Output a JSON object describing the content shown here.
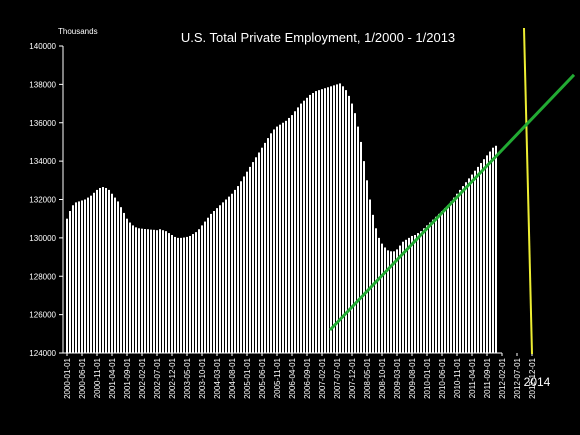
{
  "chart_data": {
    "type": "bar",
    "title": "U.S. Total Private Employment, 1/2000 - 1/2013",
    "unit_label": "Thousands",
    "ylim": [
      124000,
      140000
    ],
    "yticks": [
      124000,
      126000,
      128000,
      130000,
      132000,
      134000,
      136000,
      138000,
      140000
    ],
    "xtick_labels": [
      "2000-01-01",
      "2000-06-01",
      "2000-11-01",
      "2001-04-01",
      "2001-09-01",
      "2002-02-01",
      "2002-07-01",
      "2002-12-01",
      "2003-05-01",
      "2003-10-01",
      "2004-03-01",
      "2004-08-01",
      "2005-01-01",
      "2005-06-01",
      "2005-11-01",
      "2006-04-01",
      "2006-09-01",
      "2007-02-01",
      "2007-07-01",
      "2007-12-01",
      "2008-05-01",
      "2008-10-01",
      "2009-03-01",
      "2009-08-01",
      "2010-01-01",
      "2010-06-01",
      "2010-11-01",
      "2011-04-01",
      "2011-09-01",
      "2012-02-01",
      "2012-07-01",
      "2012-12-01"
    ],
    "series": [
      {
        "values": [
          131000,
          131400,
          131700,
          131850,
          131900,
          131950,
          132000,
          132100,
          132200,
          132350,
          132500,
          132600,
          132650,
          132600,
          132500,
          132300,
          132100,
          131900,
          131600,
          131300,
          131000,
          130800,
          130650,
          130550,
          130500,
          130480,
          130460,
          130450,
          130430,
          130420,
          130400,
          130450,
          130400,
          130350,
          130250,
          130150,
          130050,
          130000,
          130000,
          130020,
          130050,
          130100,
          130200,
          130300,
          130450,
          130650,
          130850,
          131050,
          131250,
          131400,
          131550,
          131700,
          131850,
          132000,
          132150,
          132300,
          132500,
          132700,
          132950,
          133200,
          133450,
          133700,
          133950,
          134200,
          134450,
          134700,
          134950,
          135200,
          135450,
          135650,
          135800,
          135900,
          136000,
          136100,
          136250,
          136400,
          136600,
          136800,
          137000,
          137150,
          137300,
          137450,
          137550,
          137650,
          137700,
          137750,
          137800,
          137850,
          137900,
          137950,
          138000,
          138050,
          137900,
          137700,
          137400,
          137000,
          136500,
          135800,
          135000,
          134000,
          133000,
          132000,
          131200,
          130500,
          130000,
          129700,
          129500,
          129350,
          129300,
          129300,
          129400,
          129600,
          129800,
          129900,
          130000,
          130100,
          130150,
          130250,
          130350,
          130500,
          130650,
          130800,
          130950,
          131100,
          131250,
          131400,
          131550,
          131700,
          131900,
          132100,
          132300,
          132500,
          132700,
          132900,
          133100,
          133300,
          133500,
          133700,
          133900,
          134100,
          134300,
          134500,
          134700,
          134800
        ]
      }
    ],
    "annotations": [
      {
        "kind": "trend-line",
        "color": "#22aa33",
        "from": {
          "index": 88,
          "value": 125200
        },
        "to": {
          "index": 160,
          "value": 138500
        }
      },
      {
        "kind": "vertical-line",
        "color": "#eeee33",
        "label": "2014"
      }
    ]
  }
}
